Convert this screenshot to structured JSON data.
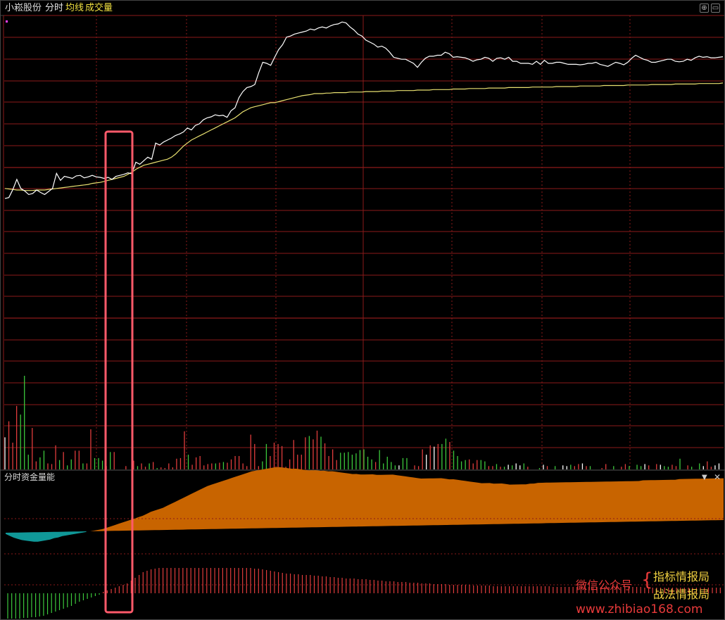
{
  "header": {
    "stock_name": "小崧股份",
    "mode_label": "分时",
    "avg_label": "均线",
    "volume_label": "成交量"
  },
  "lower_panel": {
    "title": "分时资金量能",
    "menu_icon": "dropdown-triangle-icon",
    "close_icon": "close-icon"
  },
  "window_buttons": {
    "fullscreen_icon": "window-maximize-icon"
  },
  "watermark": {
    "wechat_label": "微信公众号",
    "brace": "{",
    "name_line1": "指标情报局",
    "name_line2": "战法情报局",
    "url": "www.zhibiao168.com"
  },
  "colors": {
    "background": "#000000",
    "grid_red": "#8b1a1a",
    "price_line": "#ffffff",
    "avg_line": "#e8e070",
    "volume_up": "#e03c3c",
    "volume_down": "#3cc83c",
    "volume_flat": "#ffffff",
    "fund_positive": "#c86400",
    "fund_negative": "#109898",
    "highlight_box": "#ff5a6a",
    "wm_red": "#e83a3a",
    "wm_yellow": "#f0d040"
  },
  "chart_data": [
    {
      "type": "line",
      "name": "intraday-price",
      "series": [
        {
          "name": "price",
          "values": [
            50,
            52,
            68,
            88,
            70,
            65,
            58,
            60,
            67,
            62,
            58,
            64,
            70,
            100,
            86,
            94,
            92,
            90,
            95,
            96,
            91,
            93,
            96,
            93,
            92,
            90,
            92,
            88,
            94,
            96,
            98,
            101,
            99,
            122,
            118,
            125,
            132,
            128,
            160,
            156,
            162,
            166,
            170,
            175,
            178,
            182,
            190,
            186,
            195,
            198,
            206,
            210,
            212,
            216,
            214,
            215,
            211,
            224,
            230,
            250,
            262,
            270,
            272,
            276,
            300,
            320,
            318,
            314,
            330,
            345,
            355,
            370,
            372,
            376,
            378,
            380,
            382,
            386,
            384,
            388,
            390,
            388,
            392,
            395,
            396,
            400,
            398,
            390,
            384,
            376,
            372,
            364,
            360,
            356,
            350,
            352,
            348,
            340,
            330,
            328,
            326,
            326,
            322,
            318,
            310,
            320,
            328,
            332,
            332,
            334,
            334,
            340,
            337,
            330,
            331,
            330,
            329,
            326,
            322,
            325,
            326,
            330,
            328,
            322,
            328,
            329,
            326,
            330,
            322,
            322,
            318,
            318,
            318,
            316,
            322,
            316,
            324,
            318,
            318,
            320,
            320,
            318,
            316,
            316,
            316,
            315,
            316,
            318,
            318,
            320,
            316,
            314,
            312,
            316,
            320,
            318,
            315,
            320,
            328,
            334,
            330,
            326,
            324,
            320,
            320,
            322,
            324,
            326,
            326,
            322,
            321,
            322,
            326,
            324,
            329,
            332,
            330,
            331,
            329,
            329,
            330,
            331
          ]
        },
        {
          "name": "avg",
          "values": [
            70,
            69,
            68,
            67,
            67,
            66,
            66,
            66,
            67,
            67,
            67,
            68,
            69,
            70,
            71,
            72,
            73,
            74,
            75,
            76,
            77,
            78,
            80,
            81,
            82,
            84,
            86,
            88,
            90,
            92,
            94,
            98,
            102,
            108,
            112,
            116,
            118,
            120,
            122,
            124,
            126,
            128,
            132,
            138,
            146,
            154,
            160,
            166,
            170,
            174,
            178,
            182,
            186,
            190,
            194,
            198,
            202,
            206,
            210,
            216,
            222,
            226,
            230,
            232,
            234,
            236,
            238,
            240,
            240,
            242,
            244,
            246,
            248,
            250,
            252,
            254,
            255,
            256,
            258,
            258,
            258,
            259,
            259,
            260,
            260,
            260,
            260,
            261,
            261,
            261,
            261,
            262,
            262,
            262,
            262,
            263,
            263,
            263,
            263,
            264,
            264,
            264,
            264,
            264,
            265,
            265,
            265,
            265,
            266,
            266,
            266,
            266,
            266,
            267,
            267,
            267,
            267,
            268,
            268,
            268,
            268,
            268,
            269,
            269,
            269,
            269,
            269,
            270,
            270,
            270,
            270,
            270,
            270,
            271,
            271,
            271,
            271,
            271,
            271,
            272,
            272,
            272,
            272,
            272,
            272,
            273,
            273,
            273,
            273,
            273,
            273,
            274,
            274,
            274,
            274,
            274,
            274,
            275,
            275,
            275,
            275,
            275,
            275,
            276,
            276,
            276,
            276,
            276,
            276,
            277,
            277,
            277,
            277,
            277,
            277,
            278,
            278,
            278,
            278,
            278,
            278,
            279
          ]
        }
      ]
    },
    {
      "type": "bar",
      "name": "volume",
      "series": [
        {
          "name": "volume",
          "values": [
            48,
            72,
            40,
            95,
            82,
            140,
            22,
            62,
            12,
            18,
            28,
            9,
            8,
            36,
            14,
            26,
            6,
            15,
            28,
            28,
            9,
            9,
            60,
            17,
            17,
            13,
            5,
            26,
            26,
            0,
            0,
            5,
            0,
            13,
            5,
            9,
            4,
            9,
            11,
            2,
            3,
            2,
            9,
            3,
            16,
            17,
            57,
            22,
            7,
            18,
            20,
            6,
            8,
            9,
            9,
            10,
            11,
            10,
            15,
            20,
            20,
            9,
            5,
            52,
            38,
            5,
            12,
            38,
            20,
            40,
            38,
            35,
            4,
            15,
            44,
            22,
            22,
            48,
            50,
            45,
            58,
            49,
            39,
            20,
            30,
            14,
            25,
            25,
            26,
            22,
            24,
            29,
            30,
            19,
            15,
            11,
            29,
            9,
            19,
            11,
            6,
            6,
            17,
            17,
            0,
            6,
            5,
            30,
            22,
            36,
            34,
            38,
            38,
            46,
            41,
            28,
            20,
            12,
            14,
            15,
            9,
            14,
            14,
            12,
            5,
            5,
            8,
            4,
            4,
            7,
            6,
            9,
            6,
            9,
            4,
            0,
            0,
            2,
            7,
            5,
            0,
            5,
            0,
            6,
            5,
            7,
            5,
            8,
            9,
            5,
            5,
            0,
            0,
            2,
            8,
            0,
            5,
            0,
            4,
            8,
            5,
            0,
            7,
            5,
            8,
            6,
            0,
            8,
            7,
            5,
            4,
            7,
            5,
            16,
            0,
            6,
            4,
            0,
            9,
            5,
            12,
            4,
            6,
            9
          ]
        }
      ]
    },
    {
      "type": "area",
      "name": "分时资金量能",
      "series": [
        {
          "name": "fund-flow",
          "values": [
            -2,
            -5,
            -8,
            -10,
            -12,
            -13,
            -14,
            -15,
            -15,
            -14,
            -13,
            -12,
            -10,
            -9,
            -7,
            -6,
            -5,
            -4,
            -3,
            -2,
            -1,
            0,
            1,
            2,
            3,
            5,
            7,
            9,
            11,
            13,
            15,
            17,
            19,
            21,
            23,
            26,
            29,
            31,
            33,
            35,
            38,
            41,
            44,
            47,
            50,
            53,
            56,
            59,
            62,
            65,
            68,
            70,
            72,
            74,
            76,
            78,
            80,
            82,
            84,
            86,
            88,
            90,
            91,
            92,
            93,
            94,
            95,
            96,
            96,
            95,
            94,
            93,
            93,
            92,
            91,
            90,
            90,
            90,
            89,
            89,
            88,
            88,
            87,
            86,
            85,
            84,
            83,
            83,
            82,
            82,
            82,
            82,
            81,
            81,
            81,
            81,
            81,
            80,
            79,
            78,
            77,
            76,
            75,
            74,
            74,
            74,
            74,
            74,
            74,
            73,
            72,
            72,
            71,
            70,
            69,
            68,
            67,
            66,
            65,
            65,
            65,
            64,
            64,
            64,
            63,
            62,
            62,
            62,
            62,
            62,
            63,
            63,
            64,
            64,
            64,
            64,
            64,
            64,
            64,
            64,
            64,
            64,
            64,
            64,
            64,
            64,
            64,
            64,
            64,
            64,
            64,
            64,
            64,
            64,
            64,
            64,
            64,
            64,
            65,
            65,
            65,
            65,
            65,
            65,
            65,
            65,
            65,
            66,
            66,
            66,
            66,
            66,
            66,
            66,
            66,
            66,
            66,
            66,
            66
          ]
        },
        {
          "name": "baseline",
          "values": [
            0,
            0,
            0,
            0,
            0,
            0,
            0,
            0,
            0,
            0,
            0,
            0,
            0,
            0,
            0,
            0,
            0,
            0,
            0,
            0,
            0,
            0,
            0,
            0,
            0,
            0,
            0,
            0,
            0,
            0,
            0,
            0,
            0,
            0,
            0,
            0,
            0,
            0,
            0,
            0,
            0,
            0,
            0,
            0,
            0,
            0,
            0,
            0,
            0,
            0,
            0,
            0,
            0,
            0,
            0,
            0,
            0,
            0,
            0,
            0,
            0,
            0,
            0,
            0,
            0,
            0,
            0,
            0,
            0,
            0,
            0,
            0,
            0,
            0,
            0,
            0,
            0,
            0,
            0,
            0,
            0,
            0,
            0,
            0,
            0,
            0,
            0,
            0,
            0,
            0,
            0,
            0,
            0,
            0,
            0,
            0,
            0,
            0,
            0,
            0,
            0,
            0,
            0,
            0,
            0,
            0,
            0,
            0,
            0,
            0,
            0,
            0,
            0,
            0,
            0,
            0,
            0,
            0,
            0,
            0,
            0,
            0,
            0,
            0,
            0,
            0,
            0,
            0,
            0,
            0,
            0,
            0,
            0,
            0,
            0,
            0,
            0,
            0,
            0,
            0,
            0,
            0,
            0,
            0,
            0,
            0,
            0,
            0,
            0,
            0,
            0,
            0,
            0,
            0,
            0,
            0,
            0,
            0,
            0,
            0,
            0,
            0,
            0,
            0,
            0,
            0,
            0,
            0,
            0,
            0,
            0,
            0,
            0,
            0,
            0,
            0,
            0,
            0
          ]
        }
      ]
    },
    {
      "type": "bar",
      "name": "fund-momentum",
      "series": [
        {
          "name": "momentum",
          "values": [
            -36,
            -36,
            -36,
            -36,
            -35,
            -35,
            -34,
            -34,
            -33,
            -32,
            -30,
            -28,
            -26,
            -24,
            -22,
            -20,
            -18,
            -15,
            -12,
            -10,
            -8,
            -6,
            -4,
            -2,
            2,
            4,
            6,
            8,
            10,
            12,
            14,
            18,
            22,
            26,
            30,
            32,
            34,
            35,
            36,
            36,
            36,
            36,
            36,
            36,
            36,
            36,
            36,
            36,
            36,
            36,
            36,
            36,
            36,
            36,
            36,
            36,
            36,
            36,
            36,
            36,
            36,
            36,
            35,
            35,
            34,
            33,
            32,
            31,
            30,
            29,
            28,
            28,
            27,
            27,
            26,
            26,
            26,
            25,
            25,
            24,
            24,
            23,
            23,
            22,
            22,
            21,
            21,
            21,
            20,
            20,
            20,
            19,
            19,
            18,
            18,
            17,
            17,
            17,
            16,
            16,
            16,
            15,
            15,
            15,
            14,
            14,
            14,
            13,
            13,
            13,
            13,
            12,
            12,
            12,
            12,
            12,
            12,
            11,
            11,
            11,
            11,
            11,
            10,
            10,
            10,
            10,
            10,
            10,
            10,
            10,
            10,
            10,
            10,
            10,
            10,
            10,
            10,
            9,
            9,
            9,
            9,
            9,
            9,
            9,
            9,
            9,
            9,
            9,
            9,
            9,
            9,
            9,
            9,
            9,
            9,
            9,
            9,
            9,
            9,
            9,
            8,
            8,
            8,
            8,
            8,
            8,
            8,
            8,
            8,
            8,
            8,
            8,
            8,
            8,
            8,
            8,
            8,
            8,
            8,
            8
          ]
        }
      ]
    }
  ]
}
